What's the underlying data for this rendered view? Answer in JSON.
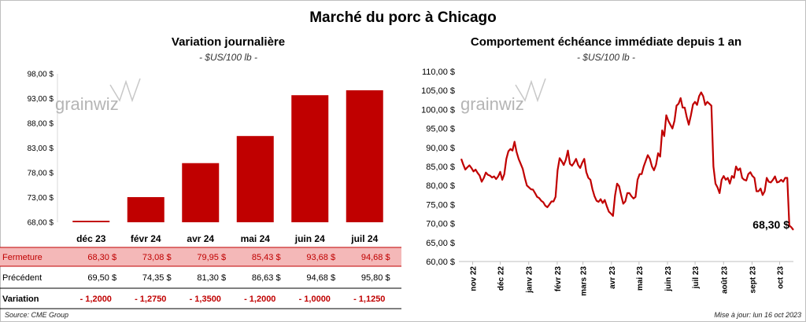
{
  "page": {
    "title": "Marché du porc à Chicago",
    "source": "Source: CME Group",
    "updated": "Mise à jour: lun 16 oct 2023"
  },
  "left": {
    "title": "Variation  journalière",
    "subtitle": "- $US/100 lb -",
    "watermark": "grainwiz",
    "table": {
      "row_labels": [
        "Fermeture",
        "Précédent",
        "Variation"
      ],
      "fermeture": [
        "68,30  $",
        "73,08  $",
        "79,95  $",
        "85,43  $",
        "93,68  $",
        "94,68  $"
      ],
      "precedent": [
        "69,50  $",
        "74,35  $",
        "81,30  $",
        "86,63  $",
        "94,68  $",
        "95,80  $"
      ],
      "variation": [
        "- 1,2000",
        "- 1,2750",
        "- 1,3500",
        "- 1,2000",
        "- 1,0000",
        "- 1,1250"
      ]
    }
  },
  "right": {
    "title": "Comportement  échéance immédiate depuis 1 an",
    "subtitle": "- $US/100 lb -",
    "watermark": "grainwiz",
    "last_label": "68,30 $"
  },
  "colors": {
    "bar": "#c00000",
    "line": "#c00000",
    "fermeture_bg": "#f4b8b8",
    "variation": "#c00000"
  },
  "chart_data": [
    {
      "type": "bar",
      "categories": [
        "déc 23",
        "févr 24",
        "avr 24",
        "mai 24",
        "juin 24",
        "juil 24"
      ],
      "values": [
        68.3,
        73.08,
        79.95,
        85.43,
        93.68,
        94.68
      ],
      "ylim": [
        68.0,
        98.0
      ],
      "yticks": [
        "68,00 $",
        "73,00 $",
        "78,00 $",
        "83,00 $",
        "88,00 $",
        "93,00 $",
        "98,00 $"
      ],
      "title": "Variation  journalière",
      "subtitle": "- $US/100 lb -",
      "grid": false
    },
    {
      "type": "line",
      "x_start": "2022-10-17",
      "x_end": "2023-10-16",
      "xticks": [
        "nov 22",
        "déc 22",
        "janv 23",
        "févr 23",
        "mars 23",
        "avr 23",
        "mai 23",
        "juin 23",
        "juil 23",
        "août 23",
        "sept 23",
        "oct 23"
      ],
      "ylim": [
        60,
        110
      ],
      "yticks": [
        "60,00 $",
        "65,00 $",
        "70,00 $",
        "75,00 $",
        "80,00 $",
        "85,00 $",
        "90,00 $",
        "95,00 $",
        "100,00 $",
        "105,00 $",
        "110,00 $"
      ],
      "title": "Comportement  échéance immédiate depuis 1 an",
      "subtitle": "- $US/100 lb -",
      "grid": false,
      "series": [
        {
          "values": [
            87.0,
            85.5,
            84.2,
            84.8,
            85.3,
            84.6,
            83.7,
            84.2,
            83.3,
            82.6,
            81.0,
            82.0,
            83.4,
            82.8,
            82.6,
            82.1,
            82.4,
            81.7,
            82.4,
            83.6,
            81.5,
            83.0,
            87.0,
            89.0,
            89.6,
            89.2,
            91.5,
            88.8,
            87.0,
            85.7,
            84.4,
            82.0,
            80.0,
            79.5,
            79.0,
            78.9,
            78.0,
            77.0,
            76.7,
            76.0,
            75.6,
            74.7,
            74.3,
            75.0,
            75.8,
            75.8,
            77.0,
            84.0,
            87.2,
            86.4,
            85.4,
            86.8,
            89.2,
            85.7,
            85.2,
            86.0,
            87.0,
            85.4,
            84.6,
            86.0,
            87.0,
            83.5,
            82.0,
            81.5,
            79.0,
            77.2,
            76.0,
            75.7,
            76.4,
            75.4,
            76.2,
            74.5,
            73.1,
            72.6,
            72.0,
            77.4,
            80.5,
            79.8,
            77.4,
            75.2,
            75.8,
            78.0,
            78.0,
            77.2,
            76.6,
            77.0,
            81.5,
            83.0,
            83.0,
            85.0,
            86.5,
            88.0,
            87.0,
            85.0,
            84.0,
            85.5,
            88.5,
            87.6,
            94.5,
            93.0,
            98.5,
            97.0,
            96.0,
            95.0,
            97.0,
            101.0,
            101.5,
            103.0,
            100.5,
            100.5,
            98.0,
            96.0,
            98.5,
            101.3,
            102.0,
            101.2,
            103.5,
            104.5,
            103.5,
            101.2,
            102.0,
            101.5,
            101.0,
            85.0,
            80.5,
            79.5,
            78.0,
            81.5,
            82.5,
            81.5,
            82.0,
            80.5,
            82.5,
            82.0,
            85.0,
            84.0,
            84.5,
            82.0,
            81.5,
            81.3,
            83.0,
            83.5,
            82.5,
            82.0,
            78.5,
            78.5,
            79.2,
            77.5,
            78.5,
            82.0,
            81.0,
            80.8,
            81.5,
            82.4,
            80.8,
            81.0,
            81.5,
            81.0,
            82.0,
            82.0,
            69.5,
            69.0,
            68.3
          ]
        }
      ],
      "annotation": "68,30 $"
    }
  ]
}
